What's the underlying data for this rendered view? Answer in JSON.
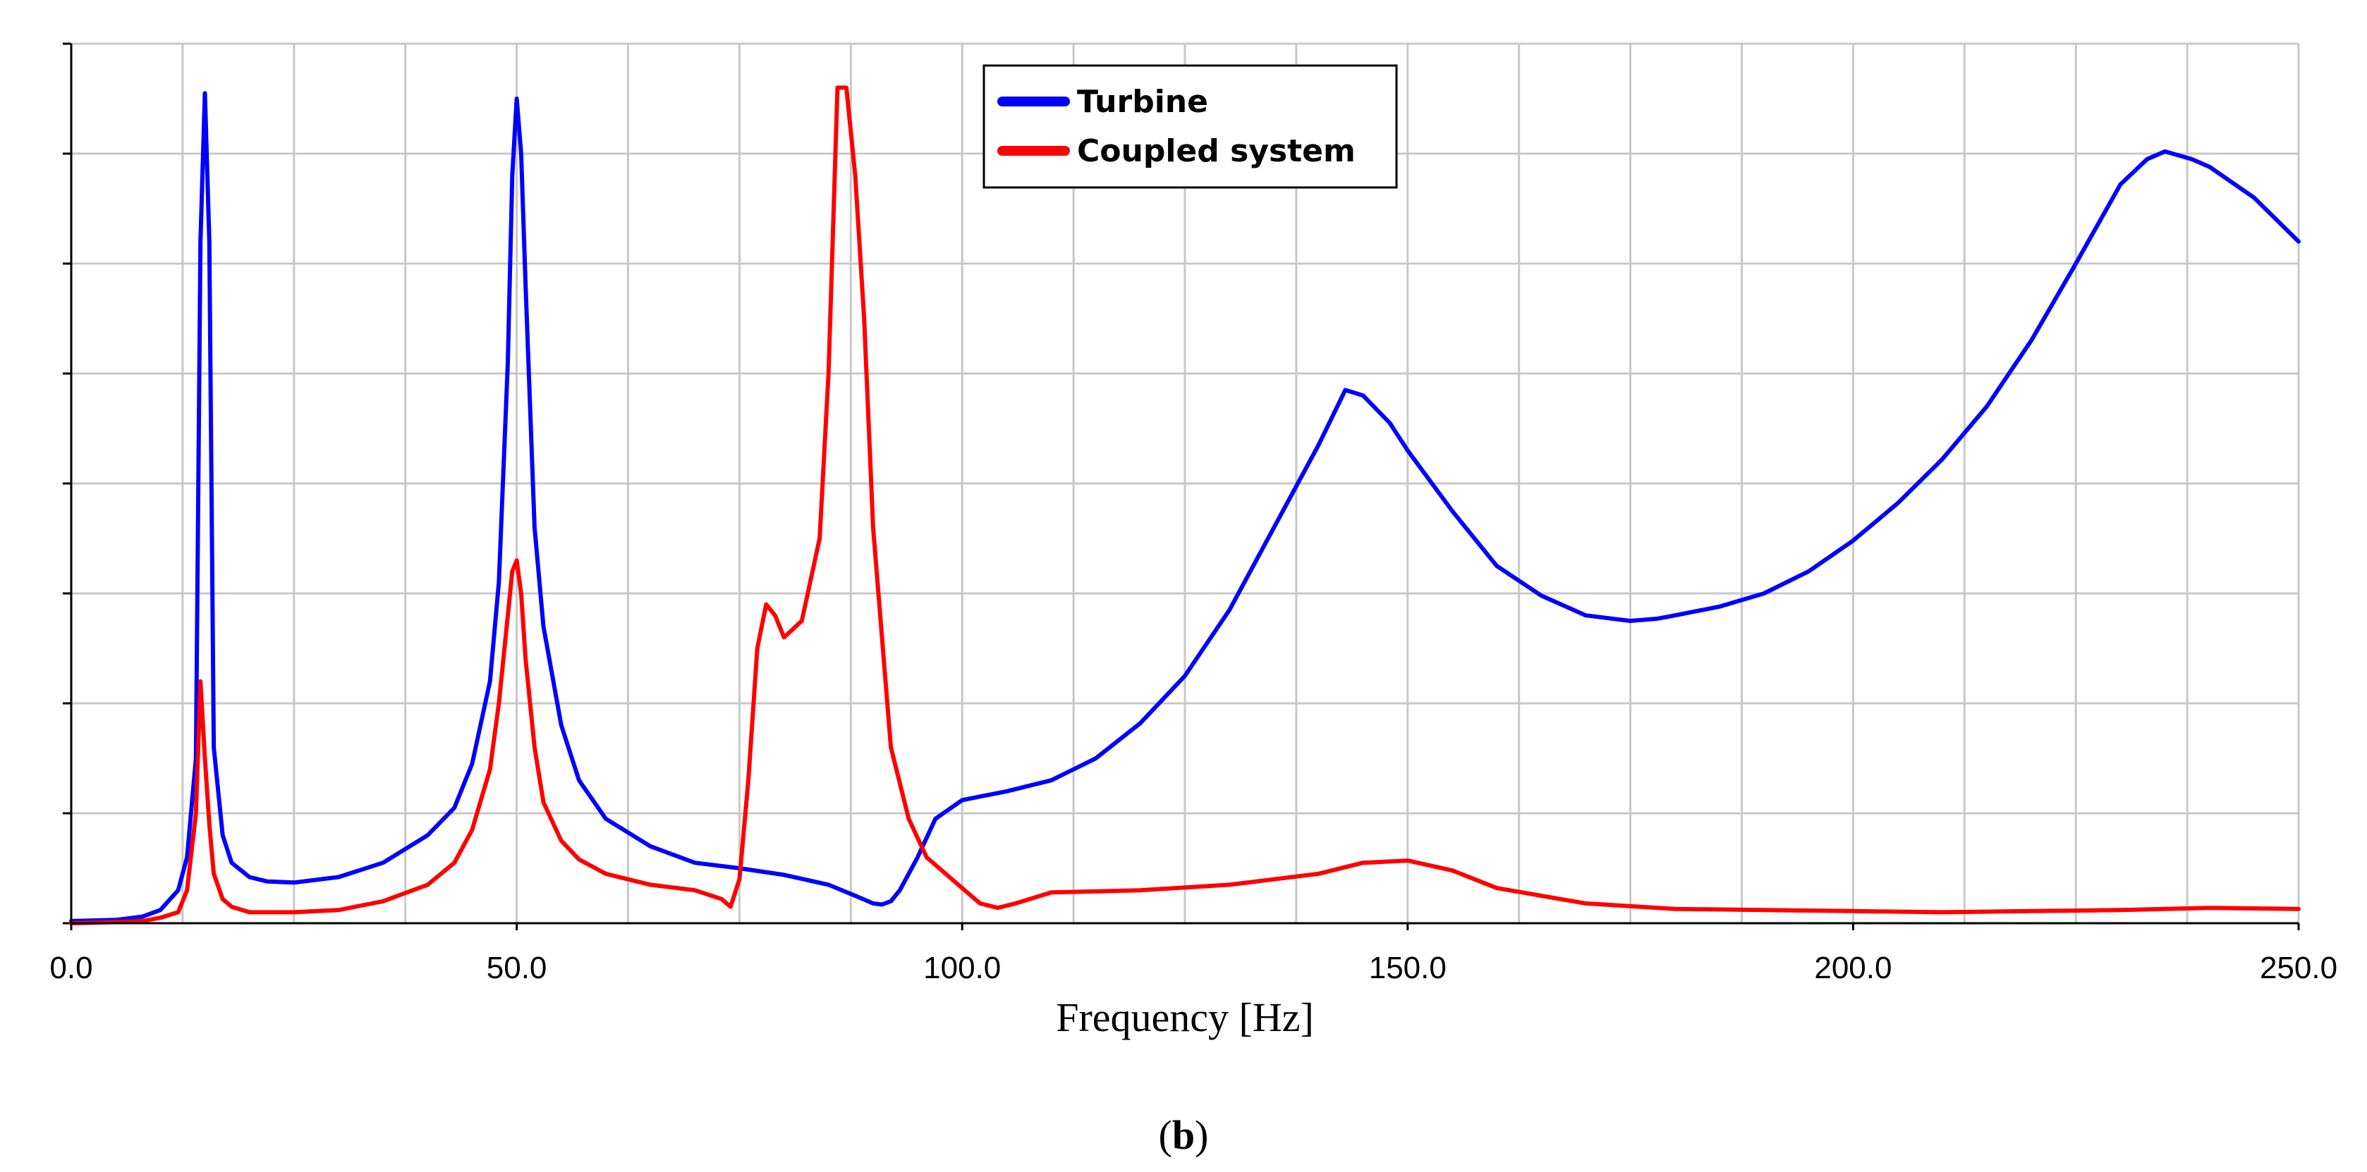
{
  "chart_data": {
    "type": "line",
    "title": "",
    "xlabel": "Frequency [Hz]",
    "ylabel": "",
    "xlim": [
      0,
      250
    ],
    "ylim": [
      0,
      8
    ],
    "x_ticks": [
      "0.0",
      "50.0",
      "100.0",
      "150.0",
      "200.0",
      "250.0"
    ],
    "grid": true,
    "legend_position": "top-center",
    "series": [
      {
        "name": "Turbine",
        "color": "#0000ff",
        "x": [
          0,
          5,
          8,
          10,
          12,
          13,
          14,
          14.5,
          15,
          15.5,
          16,
          17,
          18,
          20,
          22,
          25,
          30,
          35,
          40,
          43,
          45,
          47,
          48,
          49,
          49.5,
          50,
          50.5,
          51,
          52,
          53,
          55,
          57,
          60,
          65,
          70,
          75,
          80,
          85,
          88,
          90,
          91,
          92,
          93,
          95,
          97,
          100,
          105,
          110,
          115,
          120,
          125,
          130,
          135,
          140,
          143,
          145,
          148,
          150,
          155,
          160,
          165,
          170,
          175,
          178,
          180,
          185,
          190,
          195,
          200,
          205,
          210,
          215,
          220,
          225,
          230,
          233,
          235,
          238,
          240,
          245,
          250
        ],
        "values": [
          0.02,
          0.03,
          0.06,
          0.12,
          0.3,
          0.6,
          1.5,
          6.2,
          7.55,
          6.2,
          1.6,
          0.8,
          0.55,
          0.42,
          0.38,
          0.37,
          0.42,
          0.55,
          0.8,
          1.05,
          1.45,
          2.2,
          3.1,
          5.1,
          6.8,
          7.5,
          7.0,
          5.8,
          3.6,
          2.7,
          1.8,
          1.3,
          0.95,
          0.7,
          0.55,
          0.5,
          0.44,
          0.35,
          0.25,
          0.18,
          0.17,
          0.2,
          0.3,
          0.6,
          0.95,
          1.12,
          1.2,
          1.3,
          1.5,
          1.82,
          2.25,
          2.85,
          3.6,
          4.35,
          4.85,
          4.8,
          4.55,
          4.3,
          3.75,
          3.25,
          2.98,
          2.8,
          2.75,
          2.77,
          2.8,
          2.88,
          3.0,
          3.2,
          3.48,
          3.82,
          4.22,
          4.7,
          5.3,
          6.0,
          6.72,
          6.95,
          7.02,
          6.95,
          6.88,
          6.6,
          6.2
        ]
      },
      {
        "name": "Coupled system",
        "color": "#ff0000",
        "x": [
          0,
          5,
          8,
          10,
          12,
          13,
          14,
          14.5,
          15,
          15.5,
          16,
          17,
          18,
          20,
          25,
          30,
          35,
          40,
          43,
          45,
          47,
          48,
          49,
          49.5,
          50,
          50.5,
          51,
          52,
          53,
          55,
          57,
          60,
          65,
          70,
          73,
          74,
          75,
          76,
          77,
          78,
          79,
          80,
          82,
          84,
          85,
          86,
          87,
          88,
          89,
          90,
          92,
          94,
          96,
          100,
          102,
          104,
          106,
          110,
          120,
          130,
          140,
          145,
          150,
          155,
          160,
          170,
          180,
          190,
          200,
          210,
          220,
          230,
          240,
          250
        ],
        "values": [
          0.0,
          0.01,
          0.02,
          0.05,
          0.1,
          0.3,
          1.0,
          2.2,
          1.5,
          0.9,
          0.45,
          0.22,
          0.15,
          0.1,
          0.1,
          0.12,
          0.2,
          0.35,
          0.55,
          0.85,
          1.4,
          2.0,
          2.8,
          3.2,
          3.3,
          3.0,
          2.4,
          1.6,
          1.1,
          0.75,
          0.58,
          0.45,
          0.35,
          0.3,
          0.22,
          0.15,
          0.4,
          1.3,
          2.5,
          2.9,
          2.8,
          2.6,
          2.75,
          3.5,
          5.0,
          7.6,
          7.6,
          6.8,
          5.5,
          3.6,
          1.6,
          0.95,
          0.6,
          0.32,
          0.18,
          0.14,
          0.18,
          0.28,
          0.3,
          0.35,
          0.45,
          0.55,
          0.57,
          0.48,
          0.32,
          0.18,
          0.13,
          0.12,
          0.11,
          0.1,
          0.11,
          0.12,
          0.14,
          0.13
        ]
      }
    ]
  },
  "caption": {
    "open": "(",
    "letter": "b",
    "close": ")"
  }
}
